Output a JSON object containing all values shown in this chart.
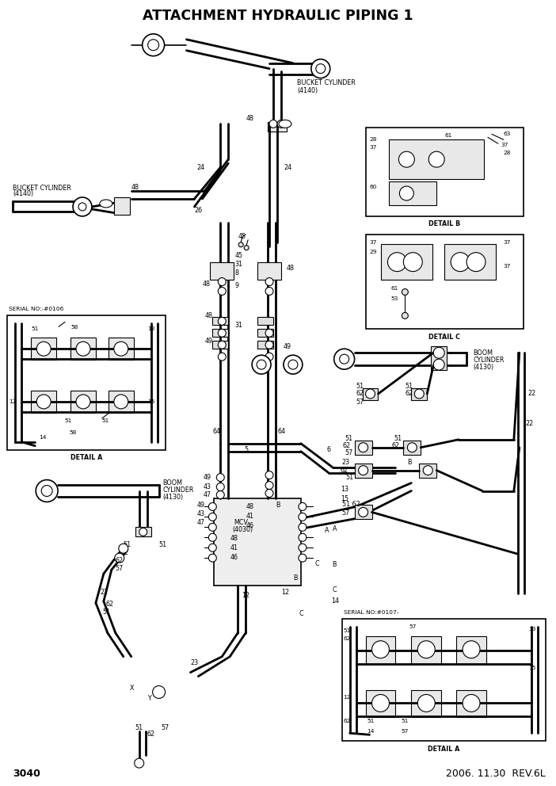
{
  "title": "ATTACHMENT HYDRAULIC PIPING 1",
  "page_num": "3040",
  "date_rev": "2006. 11.30  REV.6L",
  "bg_color": "#ffffff",
  "line_color": "#000000",
  "fig_width": 7.02,
  "fig_height": 9.92
}
